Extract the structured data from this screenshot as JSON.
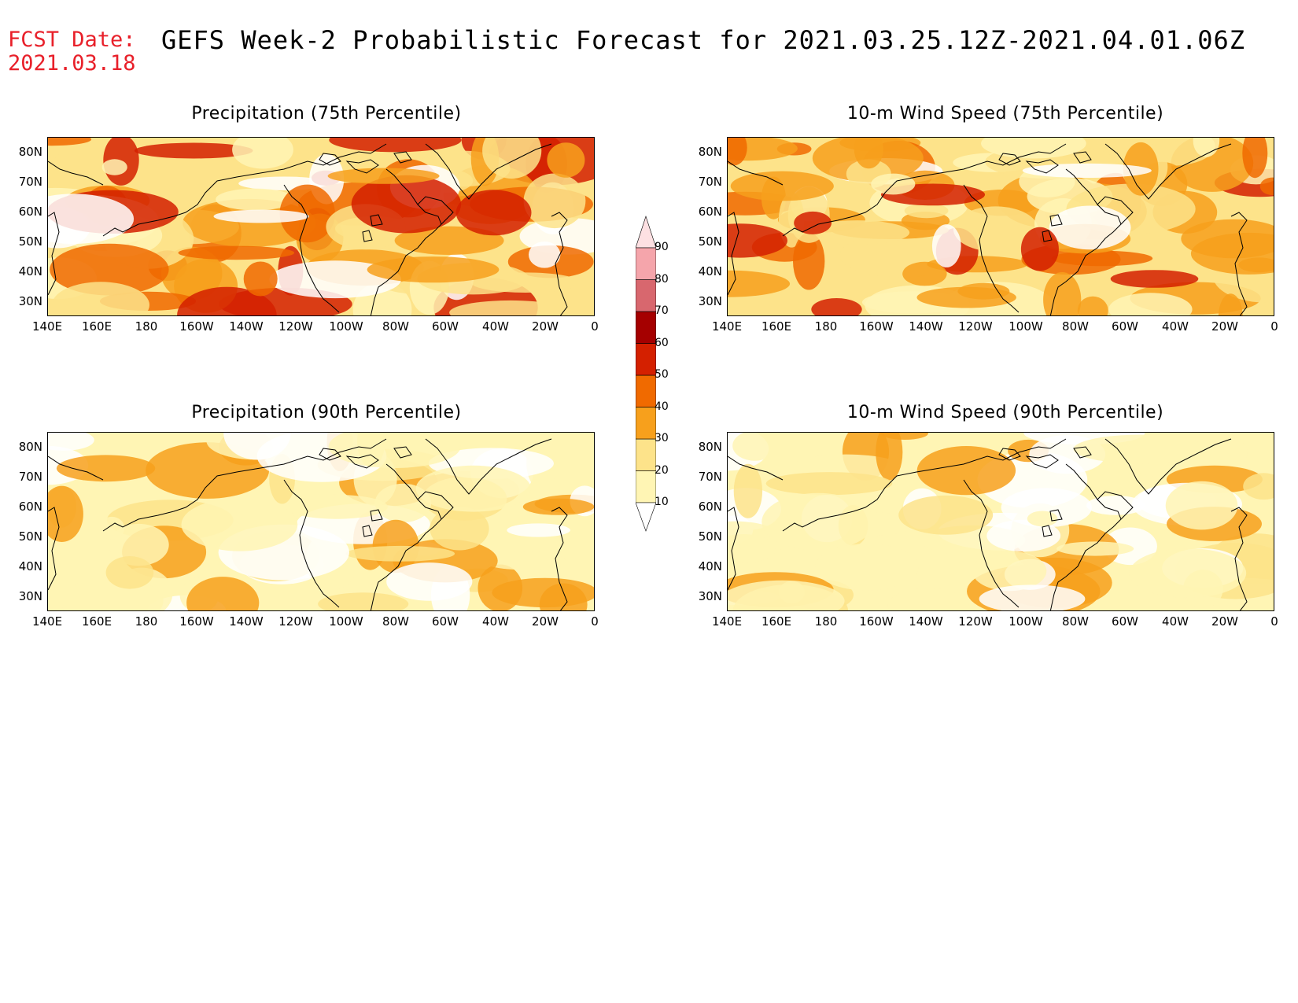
{
  "header": {
    "fcst_label": "FCST Date:",
    "fcst_date": "2021.03.18",
    "title": "GEFS Week-2 Probabilistic Forecast for 2021.03.25.12Z-2021.04.01.06Z"
  },
  "panels": [
    {
      "title": "Precipitation (75th Percentile)"
    },
    {
      "title": "10-m Wind Speed (75th Percentile)"
    },
    {
      "title": "Precipitation (90th Percentile)"
    },
    {
      "title": "10-m Wind Speed (90th Percentile)"
    }
  ],
  "axes": {
    "lat_labels": [
      "80N",
      "70N",
      "60N",
      "50N",
      "40N",
      "30N"
    ],
    "lon_labels": [
      "140E",
      "160E",
      "180",
      "160W",
      "140W",
      "120W",
      "100W",
      "80W",
      "60W",
      "40W",
      "20W",
      "0"
    ]
  },
  "colorbar": {
    "labels": [
      "90",
      "80",
      "70",
      "60",
      "50",
      "40",
      "30",
      "20",
      "10"
    ],
    "colors": [
      "#ffffff",
      "#fff5b4",
      "#fde38a",
      "#fbb040",
      "#f58b00",
      "#f25a00",
      "#e31a00",
      "#a50000",
      "#d8676e",
      "#f5a5ab",
      "#fde0e2"
    ]
  }
}
